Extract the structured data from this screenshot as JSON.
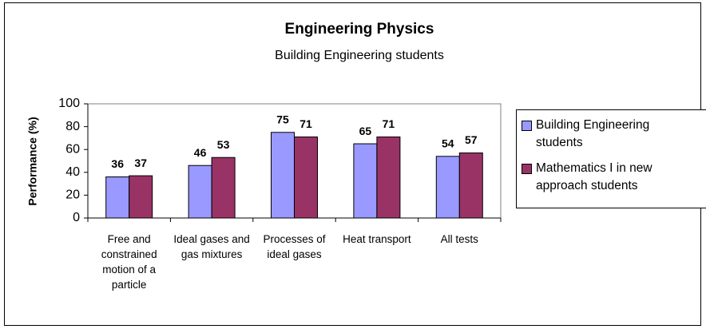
{
  "chart_data": {
    "type": "bar",
    "title": "Engineering Physics",
    "subtitle": "Building Engineering students",
    "y_label": "Performance (%)",
    "categories": [
      "Free and constrained motion of a particle",
      "Ideal gases and gas mixtures",
      "Processes of ideal gases",
      "Heat transport",
      "All tests"
    ],
    "series": [
      {
        "name": "Building Engineering students",
        "color": "#9999ff",
        "values": [
          36,
          46,
          75,
          65,
          54
        ]
      },
      {
        "name": "Mathematics I in new approach students",
        "color": "#993366",
        "values": [
          37,
          53,
          71,
          71,
          57
        ]
      }
    ],
    "ylim": [
      0,
      100
    ],
    "yticks": [
      0,
      20,
      40,
      60,
      80,
      100
    ],
    "legend": "right"
  }
}
